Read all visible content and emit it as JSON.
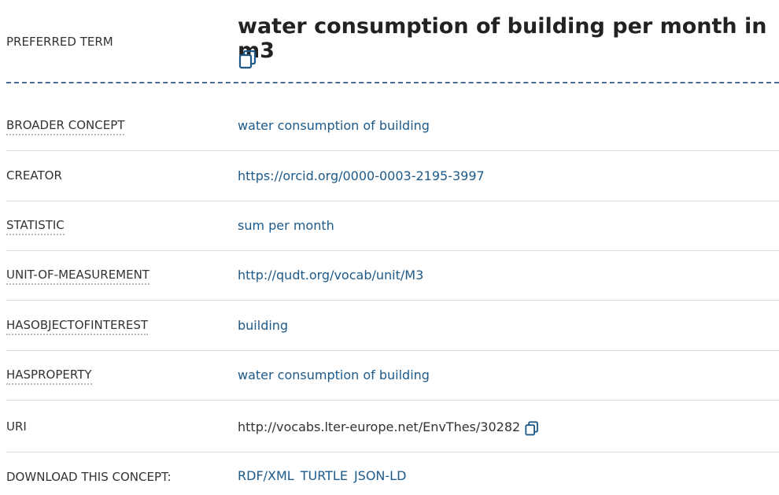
{
  "preferred_term": {
    "label": "PREFERRED TERM",
    "value": "water consumption of building per month in m3"
  },
  "rows": [
    {
      "label": "BROADER CONCEPT",
      "value": "water consumption of building"
    },
    {
      "label": "CREATOR",
      "value": "https://orcid.org/0000-0003-2195-3997"
    },
    {
      "label": "STATISTIC",
      "value": "sum per month"
    },
    {
      "label": "UNIT-OF-MEASUREMENT",
      "value": "http://qudt.org/vocab/unit/M3"
    },
    {
      "label": "HASOBJECTOFINTEREST",
      "value": "building"
    },
    {
      "label": "HASPROPERTY",
      "value": "water consumption of building"
    },
    {
      "label": "URI",
      "value": "http://vocabs.lter-europe.net/EnvThes/30282"
    }
  ],
  "download": {
    "label": "DOWNLOAD THIS CONCEPT:",
    "formats": [
      "RDF/XML",
      "TURTLE",
      "JSON-LD"
    ]
  }
}
